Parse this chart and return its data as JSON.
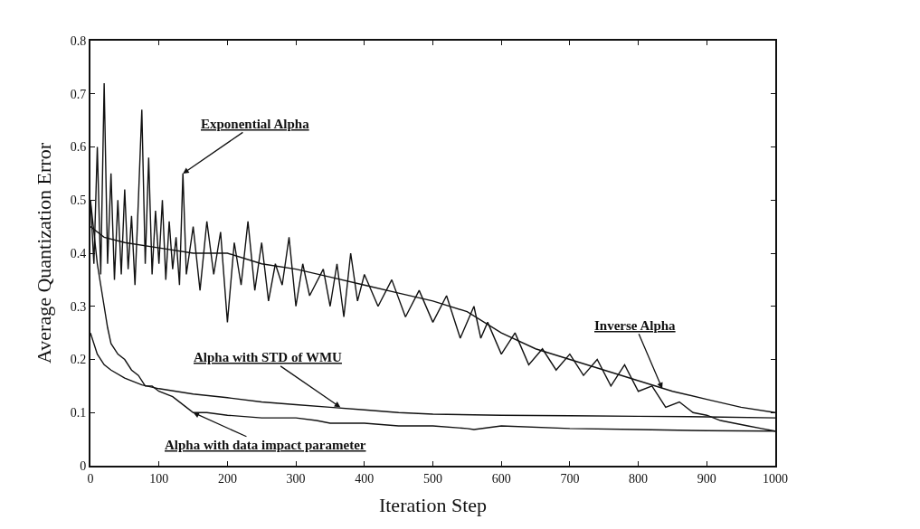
{
  "chart_data": {
    "type": "line",
    "xlabel": "Iteration Step",
    "ylabel": "Average Quantization Error",
    "xlim": [
      0,
      1000
    ],
    "ylim": [
      0,
      0.8
    ],
    "xticks": [
      0,
      100,
      200,
      300,
      400,
      500,
      600,
      700,
      800,
      900,
      1000
    ],
    "yticks": [
      0,
      0.1,
      0.2,
      0.3,
      0.4,
      0.5,
      0.6,
      0.7,
      0.8
    ],
    "marker": "none",
    "line_style": "solid",
    "series": [
      {
        "color": "#111111",
        "x": [
          0,
          5,
          10,
          15,
          20,
          25,
          30,
          35,
          40,
          45,
          50,
          55,
          60,
          65,
          70,
          75,
          80,
          85,
          90,
          95,
          100,
          105,
          110,
          115,
          120,
          125,
          130,
          135,
          140,
          150,
          160,
          170,
          180,
          190,
          200,
          210,
          220,
          230,
          240,
          250,
          260,
          270,
          280,
          290,
          300,
          310,
          320,
          340,
          350,
          360,
          370,
          380,
          390,
          400,
          420,
          440,
          460,
          480,
          500,
          520,
          540,
          560,
          570,
          580,
          600,
          620,
          640,
          660,
          680,
          700,
          720,
          740,
          760,
          780,
          800,
          820,
          840,
          860,
          880,
          900,
          920,
          940,
          960,
          980,
          1000
        ],
        "values": [
          0.5,
          0.38,
          0.6,
          0.36,
          0.72,
          0.38,
          0.55,
          0.35,
          0.5,
          0.36,
          0.52,
          0.37,
          0.47,
          0.34,
          0.5,
          0.67,
          0.38,
          0.58,
          0.36,
          0.48,
          0.38,
          0.5,
          0.35,
          0.46,
          0.37,
          0.43,
          0.34,
          0.55,
          0.36,
          0.45,
          0.33,
          0.46,
          0.36,
          0.44,
          0.27,
          0.42,
          0.34,
          0.46,
          0.33,
          0.42,
          0.31,
          0.38,
          0.34,
          0.43,
          0.3,
          0.38,
          0.32,
          0.37,
          0.3,
          0.38,
          0.28,
          0.4,
          0.31,
          0.36,
          0.3,
          0.35,
          0.28,
          0.33,
          0.27,
          0.32,
          0.24,
          0.3,
          0.24,
          0.27,
          0.21,
          0.25,
          0.19,
          0.22,
          0.18,
          0.21,
          0.17,
          0.2,
          0.15,
          0.19,
          0.14,
          0.15,
          0.11,
          0.12,
          0.1,
          0.095,
          0.085,
          0.08,
          0.075,
          0.07,
          0.065
        ]
      },
      {
        "color": "#111111",
        "x": [
          0,
          20,
          50,
          100,
          150,
          200,
          250,
          300,
          350,
          400,
          450,
          500,
          550,
          600,
          650,
          700,
          750,
          800,
          850,
          900,
          950,
          1000
        ],
        "values": [
          0.45,
          0.43,
          0.42,
          0.41,
          0.4,
          0.4,
          0.38,
          0.37,
          0.355,
          0.34,
          0.325,
          0.31,
          0.29,
          0.25,
          0.22,
          0.2,
          0.18,
          0.16,
          0.14,
          0.125,
          0.11,
          0.1
        ]
      },
      {
        "color": "#111111",
        "x": [
          0,
          10,
          20,
          30,
          50,
          75,
          100,
          150,
          200,
          250,
          300,
          350,
          400,
          450,
          500,
          600,
          700,
          800,
          900,
          1000
        ],
        "values": [
          0.25,
          0.21,
          0.19,
          0.18,
          0.165,
          0.152,
          0.145,
          0.135,
          0.128,
          0.12,
          0.115,
          0.11,
          0.105,
          0.1,
          0.097,
          0.095,
          0.094,
          0.093,
          0.092,
          0.09
        ]
      },
      {
        "color": "#111111",
        "x": [
          0,
          10,
          20,
          25,
          30,
          40,
          50,
          60,
          70,
          80,
          90,
          100,
          120,
          140,
          150,
          170,
          200,
          250,
          300,
          330,
          350,
          400,
          450,
          500,
          550,
          560,
          600,
          700,
          800,
          900,
          1000
        ],
        "values": [
          0.5,
          0.38,
          0.3,
          0.26,
          0.23,
          0.21,
          0.2,
          0.18,
          0.17,
          0.15,
          0.15,
          0.14,
          0.13,
          0.11,
          0.1,
          0.1,
          0.095,
          0.09,
          0.09,
          0.085,
          0.08,
          0.08,
          0.075,
          0.075,
          0.07,
          0.068,
          0.075,
          0.07,
          0.068,
          0.066,
          0.065
        ]
      }
    ],
    "annotations": [
      {
        "text": "Exponential Alpha",
        "x": 135,
        "y": 0.55
      },
      {
        "text": "Inverse Alpha",
        "x": 835,
        "y": 0.145
      },
      {
        "text": "Alpha with STD of WMU",
        "x": 365,
        "y": 0.11
      },
      {
        "text": "Alpha with data impact parameter",
        "x": 150,
        "y": 0.1
      }
    ]
  }
}
